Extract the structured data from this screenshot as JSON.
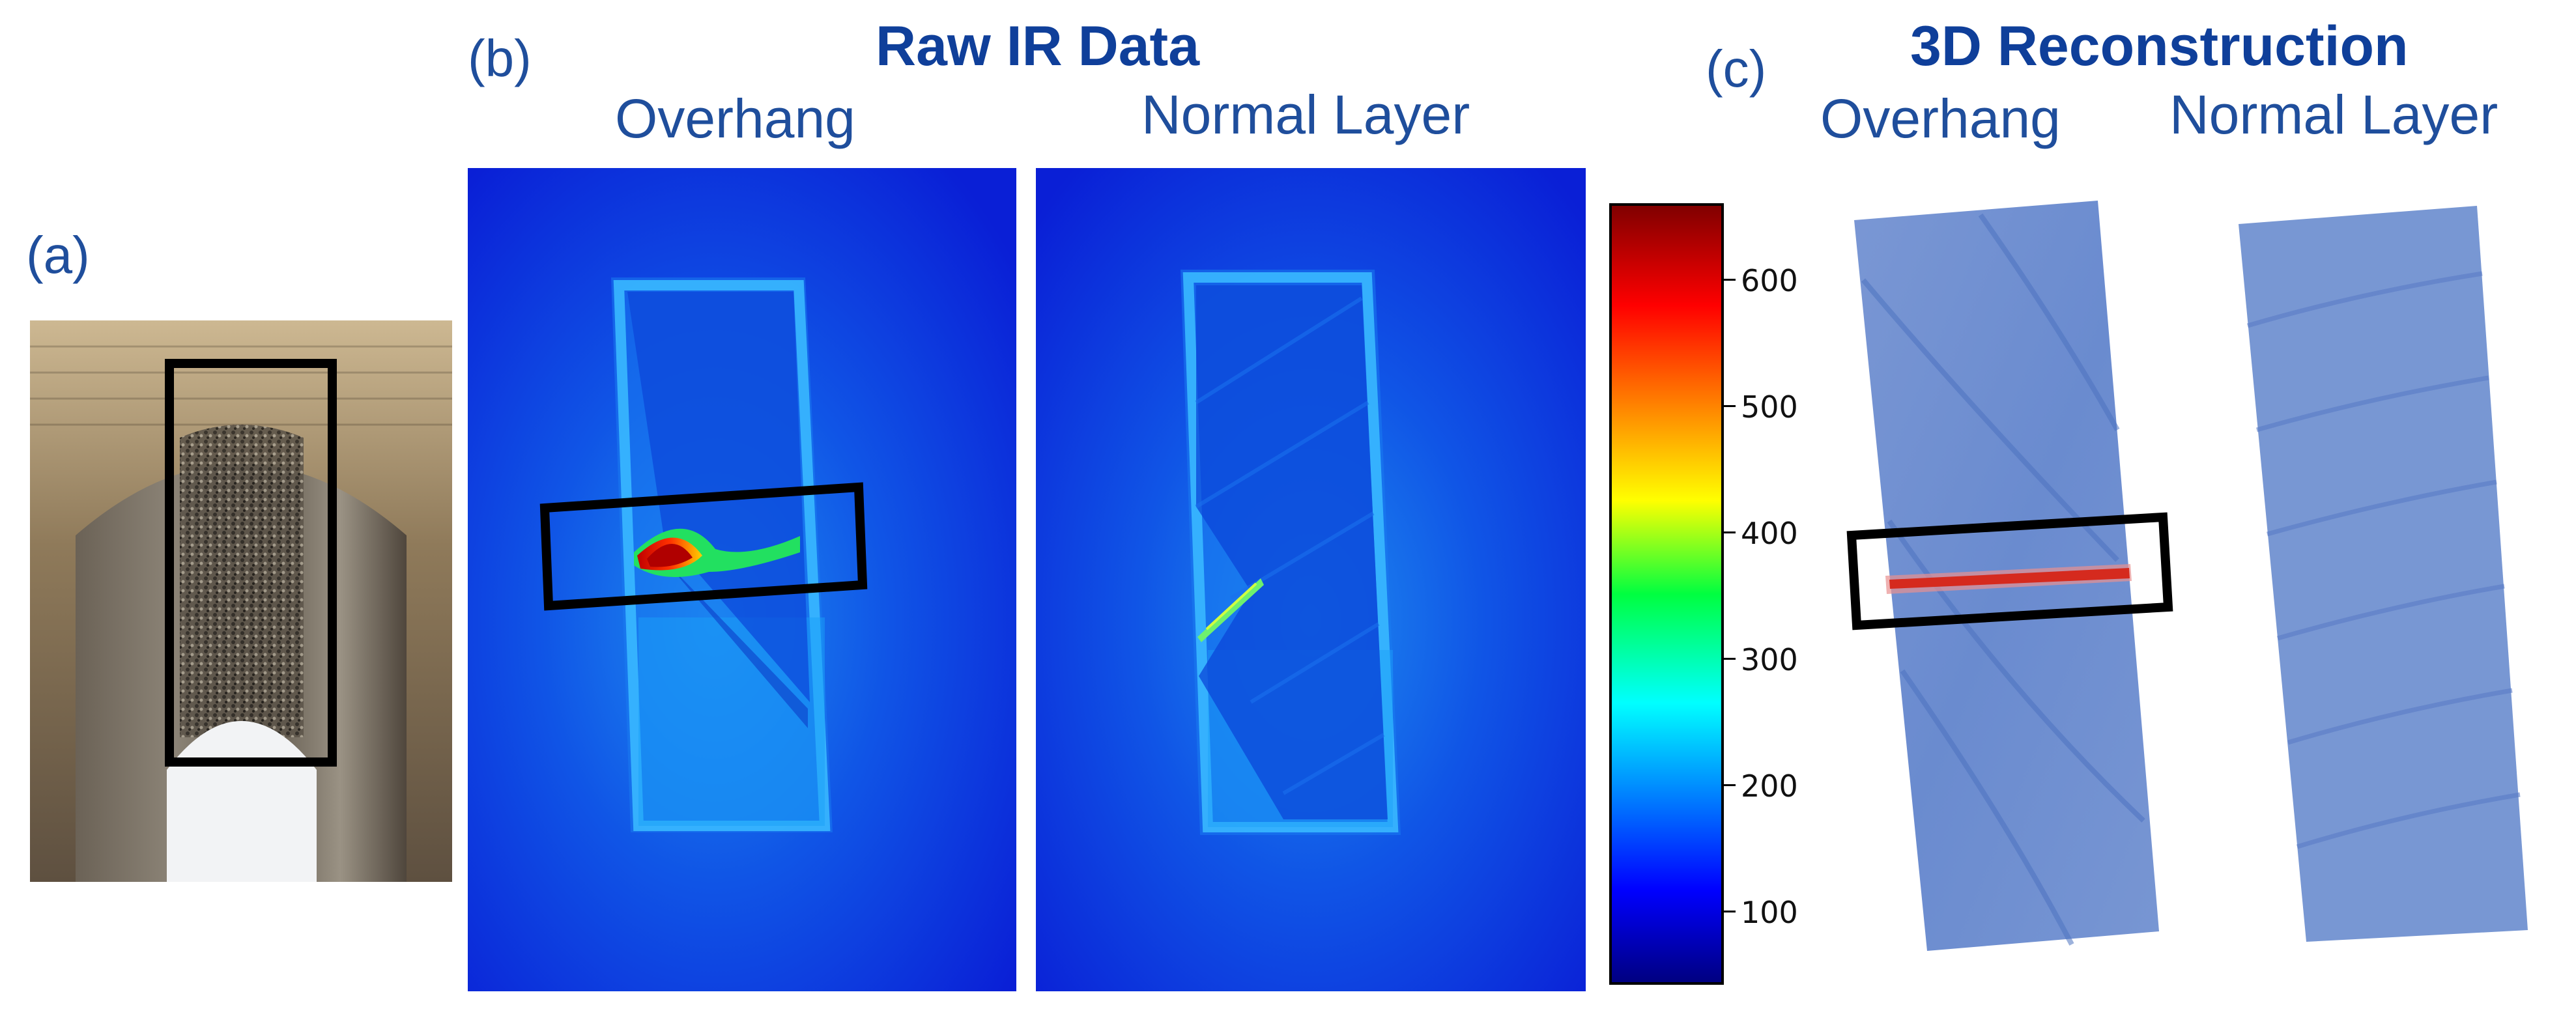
{
  "panel_a": {
    "label": "(a)"
  },
  "panel_b": {
    "label": "(b)",
    "title": "Raw IR Data",
    "left_caption": "Overhang",
    "right_caption": "Normal Layer"
  },
  "panel_c": {
    "label": "(c)",
    "title": "3D Reconstruction",
    "left_caption": "Overhang",
    "right_caption": "Normal Layer"
  },
  "colorbar": {
    "ticks": [
      "600",
      "500",
      "400",
      "300",
      "200",
      "100"
    ],
    "range": [
      40,
      660
    ],
    "colormap": "jet"
  },
  "colors": {
    "text": "#1f4e9c",
    "heading": "#0f3f9a",
    "ir_background": "#0a1fd6",
    "recon_fill": "#6f8fd0",
    "highlight_box": "#000000"
  }
}
